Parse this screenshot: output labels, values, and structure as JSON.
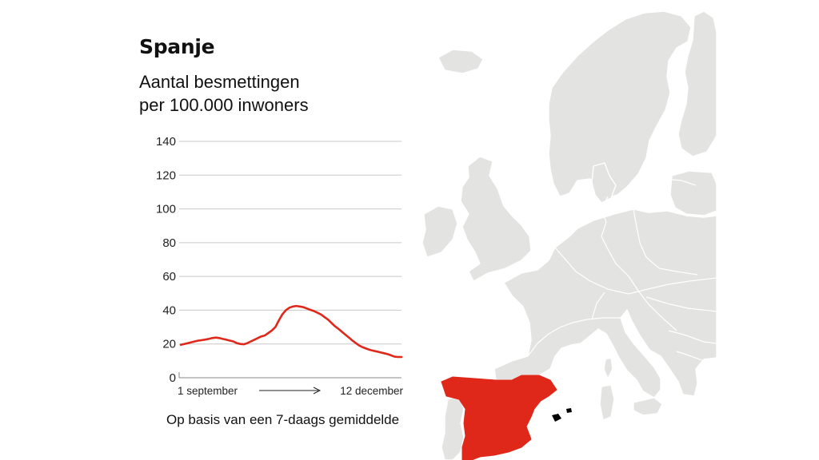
{
  "header": {
    "title": "Spanje",
    "subtitle_line1": "Aantal besmettingen",
    "subtitle_line2": "per 100.000 inwoners"
  },
  "footer": {
    "note": "Op basis van een 7-daags gemiddelde"
  },
  "colors": {
    "line": "#e0281a",
    "highlight_country": "#e0281a",
    "land": "#e3e3e1",
    "border": "#ffffff",
    "grid": "#c8c8c8"
  },
  "map": {
    "highlighted_country": "Spanje"
  },
  "chart_data": {
    "type": "line",
    "title": "Spanje",
    "subtitle": "Aantal besmettingen per 100.000 inwoners",
    "ylim": [
      0,
      140
    ],
    "yticks": [
      0,
      20,
      40,
      60,
      80,
      100,
      120,
      140
    ],
    "grid": true,
    "x_start_label": "1 september",
    "x_end_label": "12 december",
    "series": [
      {
        "values": [
          19.5,
          20,
          20.5,
          21,
          21.5,
          22,
          22.3,
          22.6,
          23,
          23.5,
          23.8,
          23.5,
          23,
          22.5,
          22,
          21.5,
          20.5,
          20,
          19.8,
          20.5,
          21.5,
          22.5,
          23.5,
          24.5,
          25,
          26.5,
          28,
          30,
          34,
          37.5,
          40,
          41.5,
          42.2,
          42.5,
          42.2,
          41.8,
          41,
          40.2,
          39.5,
          38.5,
          37.5,
          36,
          34.5,
          32.5,
          30.5,
          29,
          27.2,
          25.5,
          23.8,
          22,
          20.5,
          19,
          18,
          17.2,
          16.5,
          16,
          15.5,
          15,
          14.5,
          14,
          13.3,
          12.5,
          12.3,
          12.3
        ]
      }
    ]
  }
}
